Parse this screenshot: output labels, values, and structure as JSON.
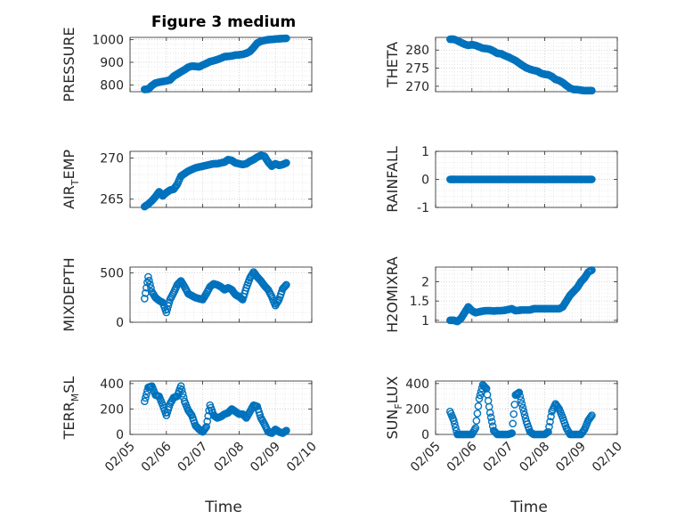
{
  "figure": {
    "title": "Figure 3 medium",
    "xlabel": "Time",
    "x_tick_labels": [
      "02/05",
      "02/06",
      "02/07",
      "02/08",
      "02/09",
      "02/10"
    ],
    "marker_color": "#0072BD",
    "grid": "major and minor, dotted"
  },
  "chart_data": [
    {
      "type": "scatter",
      "ylabel": "PRESSURE",
      "ylim": [
        770,
        1010
      ],
      "yticks": [
        800,
        900,
        1000
      ],
      "ytick_labels": [
        "800",
        "900",
        "1000"
      ],
      "x": [
        0.4,
        0.5,
        0.6,
        0.7,
        0.8,
        0.9,
        1.0,
        1.1,
        1.2,
        1.3,
        1.4,
        1.5,
        1.6,
        1.7,
        1.8,
        1.9,
        2.0,
        2.1,
        2.2,
        2.3,
        2.4,
        2.5,
        2.6,
        2.7,
        2.8,
        2.9,
        3.0,
        3.1,
        3.2,
        3.3,
        3.4,
        3.5,
        3.6,
        3.7,
        3.8,
        3.9,
        4.0,
        4.1,
        4.2,
        4.3
      ],
      "y": [
        780,
        781,
        797,
        808,
        812,
        815,
        818,
        822,
        838,
        848,
        858,
        867,
        878,
        883,
        882,
        880,
        888,
        895,
        903,
        907,
        912,
        918,
        925,
        926,
        928,
        932,
        933,
        935,
        940,
        948,
        965,
        985,
        993,
        997,
        1000,
        1001,
        1003,
        1004,
        1005,
        1006
      ]
    },
    {
      "type": "scatter",
      "ylabel": "THETA",
      "ylim": [
        268.5,
        283.5
      ],
      "yticks": [
        270,
        275,
        280
      ],
      "ytick_labels": [
        "270",
        "275",
        "280"
      ],
      "x": [
        0.4,
        0.5,
        0.6,
        0.7,
        0.8,
        0.9,
        1.0,
        1.1,
        1.2,
        1.3,
        1.4,
        1.5,
        1.6,
        1.7,
        1.8,
        1.9,
        2.0,
        2.1,
        2.2,
        2.3,
        2.4,
        2.5,
        2.6,
        2.7,
        2.8,
        2.9,
        3.0,
        3.1,
        3.2,
        3.3,
        3.4,
        3.5,
        3.6,
        3.7,
        3.8,
        3.9,
        4.0,
        4.1,
        4.2,
        4.3
      ],
      "y": [
        283.0,
        283.0,
        282.6,
        282.1,
        281.6,
        281.3,
        281.5,
        281.3,
        280.9,
        280.5,
        280.4,
        280.2,
        279.7,
        279.1,
        279.0,
        278.5,
        278.1,
        277.6,
        277.1,
        276.4,
        275.7,
        275.1,
        274.7,
        274.4,
        274.2,
        273.6,
        273.3,
        273.2,
        272.7,
        271.9,
        271.6,
        271.0,
        270.2,
        269.5,
        269.1,
        269.1,
        268.9,
        268.8,
        268.8,
        268.8
      ]
    },
    {
      "type": "scatter",
      "ylabel": "AIR_TEMP",
      "ylim": [
        264,
        270.8
      ],
      "yticks": [
        265,
        270
      ],
      "ytick_labels": [
        "265",
        "270"
      ],
      "x": [
        0.4,
        0.5,
        0.6,
        0.7,
        0.8,
        0.9,
        1.0,
        1.1,
        1.2,
        1.3,
        1.4,
        1.5,
        1.6,
        1.7,
        1.8,
        1.9,
        2.0,
        2.1,
        2.2,
        2.3,
        2.4,
        2.5,
        2.6,
        2.7,
        2.8,
        2.9,
        3.0,
        3.1,
        3.2,
        3.3,
        3.4,
        3.5,
        3.6,
        3.7,
        3.8,
        3.9,
        4.0,
        4.1,
        4.2,
        4.3
      ],
      "y": [
        264.1,
        264.4,
        264.8,
        265.3,
        265.9,
        265.4,
        265.8,
        266.1,
        266.2,
        266.8,
        267.8,
        268.1,
        268.4,
        268.6,
        268.8,
        268.9,
        269.0,
        269.1,
        269.2,
        269.3,
        269.3,
        269.4,
        269.5,
        269.8,
        269.7,
        269.4,
        269.3,
        269.2,
        269.3,
        269.6,
        269.8,
        270.1,
        270.3,
        270.2,
        269.5,
        269.0,
        269.3,
        269.1,
        269.2,
        269.4
      ]
    },
    {
      "type": "scatter",
      "ylabel": "RAINFALL",
      "ylim": [
        -1,
        1
      ],
      "yticks": [
        -1,
        0,
        1
      ],
      "ytick_labels": [
        "-1",
        "0",
        "1"
      ],
      "x": [
        0.4,
        0.5,
        0.6,
        0.7,
        0.8,
        0.9,
        1.0,
        1.1,
        1.2,
        1.3,
        1.4,
        1.5,
        1.6,
        1.7,
        1.8,
        1.9,
        2.0,
        2.1,
        2.2,
        2.3,
        2.4,
        2.5,
        2.6,
        2.7,
        2.8,
        2.9,
        3.0,
        3.1,
        3.2,
        3.3,
        3.4,
        3.5,
        3.6,
        3.7,
        3.8,
        3.9,
        4.0,
        4.1,
        4.2,
        4.3
      ],
      "y": [
        0,
        0,
        0,
        0,
        0,
        0,
        0,
        0,
        0,
        0,
        0,
        0,
        0,
        0,
        0,
        0,
        0,
        0,
        0,
        0,
        0,
        0,
        0,
        0,
        0,
        0,
        0,
        0,
        0,
        0,
        0,
        0,
        0,
        0,
        0,
        0,
        0,
        0,
        0,
        0
      ]
    },
    {
      "type": "scatter",
      "ylabel": "MIXDEPTH",
      "ylim": [
        0,
        560
      ],
      "yticks": [
        0,
        500
      ],
      "ytick_labels": [
        "0",
        "500"
      ],
      "x": [
        0.4,
        0.5,
        0.6,
        0.7,
        0.8,
        0.9,
        1.0,
        1.1,
        1.2,
        1.3,
        1.4,
        1.5,
        1.6,
        1.7,
        1.8,
        1.9,
        2.0,
        2.1,
        2.2,
        2.3,
        2.4,
        2.5,
        2.6,
        2.7,
        2.8,
        2.9,
        3.0,
        3.1,
        3.2,
        3.3,
        3.4,
        3.5,
        3.6,
        3.7,
        3.8,
        3.9,
        4.0,
        4.1,
        4.2,
        4.3
      ],
      "y": [
        240,
        460,
        310,
        250,
        220,
        200,
        100,
        230,
        300,
        380,
        420,
        360,
        290,
        270,
        250,
        240,
        230,
        290,
        360,
        390,
        380,
        360,
        330,
        350,
        330,
        280,
        260,
        230,
        350,
        450,
        510,
        460,
        420,
        370,
        330,
        260,
        170,
        230,
        340,
        380
      ]
    },
    {
      "type": "scatter",
      "ylabel": "H2OMIXRA",
      "ylim": [
        0.95,
        2.38
      ],
      "yticks": [
        1,
        1.5,
        2
      ],
      "ytick_labels": [
        "1",
        "1.5",
        "2"
      ],
      "x": [
        0.4,
        0.5,
        0.6,
        0.7,
        0.8,
        0.9,
        1.0,
        1.1,
        1.2,
        1.3,
        1.4,
        1.5,
        1.6,
        1.7,
        1.8,
        1.9,
        2.0,
        2.1,
        2.2,
        2.3,
        2.4,
        2.5,
        2.6,
        2.7,
        2.8,
        2.9,
        3.0,
        3.1,
        3.2,
        3.3,
        3.4,
        3.5,
        3.6,
        3.7,
        3.8,
        3.9,
        4.0,
        4.1,
        4.2,
        4.3
      ],
      "y": [
        1.0,
        1.0,
        0.97,
        1.05,
        1.2,
        1.35,
        1.25,
        1.2,
        1.22,
        1.24,
        1.25,
        1.25,
        1.24,
        1.25,
        1.25,
        1.26,
        1.28,
        1.3,
        1.25,
        1.26,
        1.27,
        1.27,
        1.27,
        1.3,
        1.3,
        1.3,
        1.3,
        1.3,
        1.3,
        1.3,
        1.3,
        1.35,
        1.5,
        1.65,
        1.75,
        1.85,
        2.0,
        2.1,
        2.25,
        2.3
      ]
    },
    {
      "type": "scatter",
      "ylabel": "TERR_MSL",
      "ylim": [
        0,
        420
      ],
      "yticks": [
        0,
        200,
        400
      ],
      "ytick_labels": [
        "0",
        "200",
        "400"
      ],
      "x": [
        0.4,
        0.5,
        0.6,
        0.7,
        0.8,
        0.9,
        1.0,
        1.1,
        1.2,
        1.3,
        1.4,
        1.5,
        1.6,
        1.7,
        1.8,
        1.9,
        2.0,
        2.1,
        2.2,
        2.3,
        2.4,
        2.5,
        2.6,
        2.7,
        2.8,
        2.9,
        3.0,
        3.1,
        3.2,
        3.3,
        3.4,
        3.5,
        3.6,
        3.7,
        3.8,
        3.9,
        4.0,
        4.1,
        4.2,
        4.3
      ],
      "y": [
        260,
        370,
        380,
        310,
        300,
        230,
        150,
        240,
        290,
        300,
        380,
        260,
        190,
        150,
        70,
        40,
        20,
        60,
        230,
        150,
        130,
        140,
        160,
        170,
        200,
        180,
        160,
        160,
        130,
        180,
        230,
        220,
        130,
        80,
        20,
        10,
        40,
        20,
        10,
        30
      ]
    },
    {
      "type": "scatter",
      "ylabel": "SUN_FLUX",
      "ylim": [
        0,
        420
      ],
      "yticks": [
        0,
        200,
        400
      ],
      "ytick_labels": [
        "0",
        "200",
        "400"
      ],
      "x": [
        0.4,
        0.5,
        0.6,
        0.7,
        0.8,
        0.9,
        1.0,
        1.1,
        1.2,
        1.3,
        1.4,
        1.5,
        1.6,
        1.7,
        1.8,
        1.9,
        2.0,
        2.1,
        2.2,
        2.3,
        2.4,
        2.5,
        2.6,
        2.7,
        2.8,
        2.9,
        3.0,
        3.1,
        3.2,
        3.3,
        3.4,
        3.5,
        3.6,
        3.7,
        3.8,
        3.9,
        4.0,
        4.1,
        4.2,
        4.3
      ],
      "y": [
        180,
        110,
        0,
        0,
        0,
        0,
        0,
        50,
        280,
        390,
        360,
        170,
        30,
        0,
        0,
        0,
        0,
        10,
        310,
        330,
        210,
        100,
        20,
        0,
        0,
        0,
        0,
        20,
        180,
        240,
        200,
        130,
        50,
        0,
        0,
        0,
        0,
        40,
        110,
        150
      ]
    }
  ]
}
